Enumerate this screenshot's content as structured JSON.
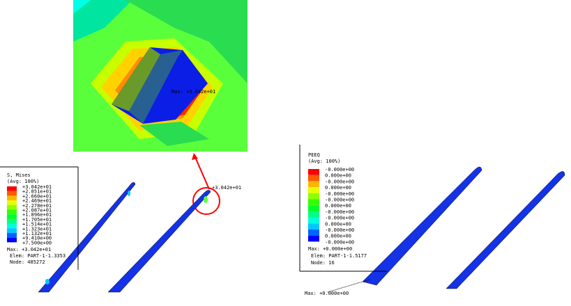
{
  "left_legend": {
    "title": "S, Mises",
    "avg": "(Avg: 100%)",
    "values": [
      "+3.042e+01",
      "+2.851e+01",
      "+2.660e+01",
      "+2.469e+01",
      "+2.278e+01",
      "+2.087e+01",
      "+1.896e+01",
      "+1.705e+01",
      "+1.514e+01",
      "+1.323e+01",
      "+1.132e+01",
      "+9.410e+00",
      "+7.500e+00"
    ],
    "max": "Max: +3.042e+01",
    "elem": "Elem: PART-1-1.3353",
    "node": "Node: 485272"
  },
  "right_legend": {
    "title": "PEEQ",
    "avg": "(Avg: 100%)",
    "values": [
      "-0.000e+00",
      "0.000e+00",
      "-0.000e+00",
      "0.000e+00",
      "-0.000e+00",
      "-0.000e+00",
      "0.000e+00",
      "-0.000e+00",
      "-0.000e+00",
      "0.000e+00",
      "-0.000e+00",
      "0.000e+00",
      "-0.000e+00"
    ],
    "max": "Max: +0.000e+00",
    "elem": "Elem: PART-1-1.5177",
    "node": "Node: 16"
  },
  "annotations": {
    "inset_max": "Max: +3.042e+01",
    "model_max": "+3.042e+01",
    "right_max": "Max: +0.000e+00"
  },
  "colors": {
    "scale": [
      "#ff0000",
      "#ff5a00",
      "#ffb400",
      "#e6ff00",
      "#8cff00",
      "#32ff00",
      "#00ff28",
      "#00ff82",
      "#00ffdc",
      "#00c8ff",
      "#0064ff",
      "#0000ff"
    ],
    "highlight": "#ff0000"
  }
}
